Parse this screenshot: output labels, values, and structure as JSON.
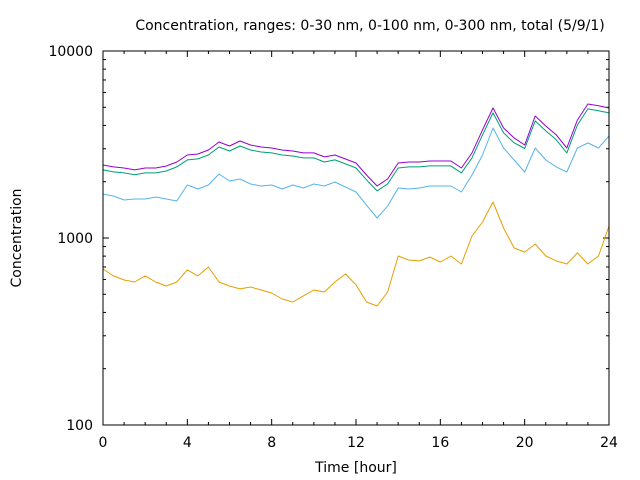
{
  "chart_data": {
    "type": "line",
    "title": "Concentration, ranges: 0-30 nm, 0-100 nm, 0-300 nm, total (5/9/1)",
    "xlabel": "Time [hour]",
    "ylabel": "Concentration",
    "yscale": "log",
    "xlim": [
      0,
      24
    ],
    "ylim": [
      100,
      10000
    ],
    "xticks": [
      0,
      4,
      8,
      12,
      16,
      20,
      24
    ],
    "xtick_labels": [
      "0",
      "4",
      "8",
      "12",
      "16",
      "20",
      "24"
    ],
    "yticks": [
      100,
      1000,
      10000
    ],
    "ytick_labels": [
      "100",
      "1000",
      "10000"
    ],
    "grid": false,
    "legend": "none",
    "x": [
      0,
      0.5,
      1,
      1.5,
      2,
      2.5,
      3,
      3.5,
      4,
      4.5,
      5,
      5.5,
      6,
      6.5,
      7,
      7.5,
      8,
      8.5,
      9,
      9.5,
      10,
      10.5,
      11,
      11.5,
      12,
      12.5,
      13,
      13.5,
      14,
      14.5,
      15,
      15.5,
      16,
      16.5,
      17,
      17.5,
      18,
      18.5,
      19,
      19.5,
      20,
      20.5,
      21,
      21.5,
      22,
      22.5,
      23,
      23.5,
      24
    ],
    "series": [
      {
        "name": "0-30 nm",
        "color": "#e69f00",
        "values": [
          683,
          627,
          596,
          582,
          627,
          582,
          554,
          582,
          675,
          627,
          700,
          582,
          554,
          534,
          547,
          527,
          508,
          472,
          455,
          490,
          527,
          514,
          582,
          642,
          561,
          455,
          433,
          514,
          801,
          763,
          754,
          791,
          744,
          801,
          726,
          1025,
          1218,
          1558,
          1130,
          885,
          841,
          929,
          801,
          754,
          726,
          832,
          726,
          801,
          1159
        ]
      },
      {
        "name": "0-100 nm",
        "color": "#56b4e9",
        "values": [
          1718,
          1678,
          1597,
          1617,
          1617,
          1657,
          1617,
          1578,
          1920,
          1829,
          1920,
          2198,
          2017,
          2068,
          1945,
          1897,
          1920,
          1829,
          1920,
          1850,
          1945,
          1897,
          1992,
          1873,
          1763,
          1500,
          1279,
          1482,
          1850,
          1829,
          1850,
          1897,
          1897,
          1897,
          1763,
          2173,
          2779,
          3876,
          3029,
          2612,
          2254,
          3029,
          2612,
          2399,
          2254,
          3029,
          3221,
          3029,
          3510
        ]
      },
      {
        "name": "0-300 nm",
        "color": "#009e73",
        "values": [
          2312,
          2258,
          2230,
          2178,
          2230,
          2230,
          2283,
          2399,
          2617,
          2650,
          2779,
          3067,
          2918,
          3105,
          2957,
          2885,
          2850,
          2779,
          2746,
          2680,
          2680,
          2548,
          2617,
          2490,
          2368,
          2047,
          1787,
          1947,
          2368,
          2399,
          2399,
          2430,
          2430,
          2430,
          2230,
          2680,
          3560,
          4665,
          3650,
          3230,
          3010,
          4230,
          3740,
          3350,
          2850,
          4020,
          4905,
          4790,
          4665
        ]
      },
      {
        "name": "total",
        "color": "#9400d3",
        "values": [
          2457,
          2399,
          2368,
          2312,
          2368,
          2368,
          2427,
          2548,
          2779,
          2814,
          2957,
          3262,
          3105,
          3302,
          3142,
          3067,
          3029,
          2957,
          2918,
          2850,
          2850,
          2713,
          2779,
          2644,
          2517,
          2173,
          1897,
          2068,
          2517,
          2548,
          2548,
          2581,
          2581,
          2581,
          2368,
          2850,
          3786,
          4958,
          3876,
          3428,
          3142,
          4491,
          3971,
          3557,
          3029,
          4274,
          5210,
          5090,
          4958
        ]
      }
    ]
  }
}
